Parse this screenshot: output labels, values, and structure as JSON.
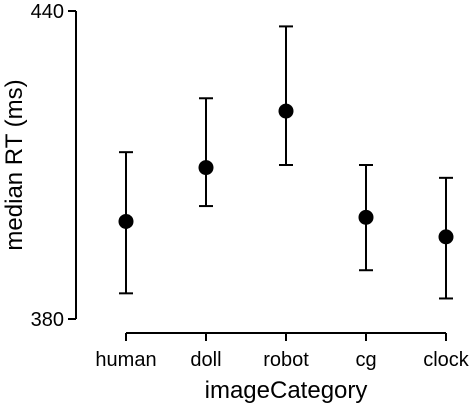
{
  "chart_data": {
    "type": "scatter",
    "title": "",
    "xlabel": "imageCategory",
    "ylabel": "median RT (ms)",
    "categories": [
      "human",
      "doll",
      "robot",
      "cg",
      "clock"
    ],
    "values": [
      399.0,
      409.5,
      420.5,
      399.8,
      396.0
    ],
    "error_low": [
      385.0,
      402.0,
      410.0,
      389.5,
      384.0
    ],
    "error_high": [
      412.5,
      423.0,
      437.0,
      410.0,
      407.5
    ],
    "ylim": [
      380,
      440
    ],
    "y_ticks": [
      380,
      440
    ],
    "grid": false,
    "legend": "none"
  }
}
